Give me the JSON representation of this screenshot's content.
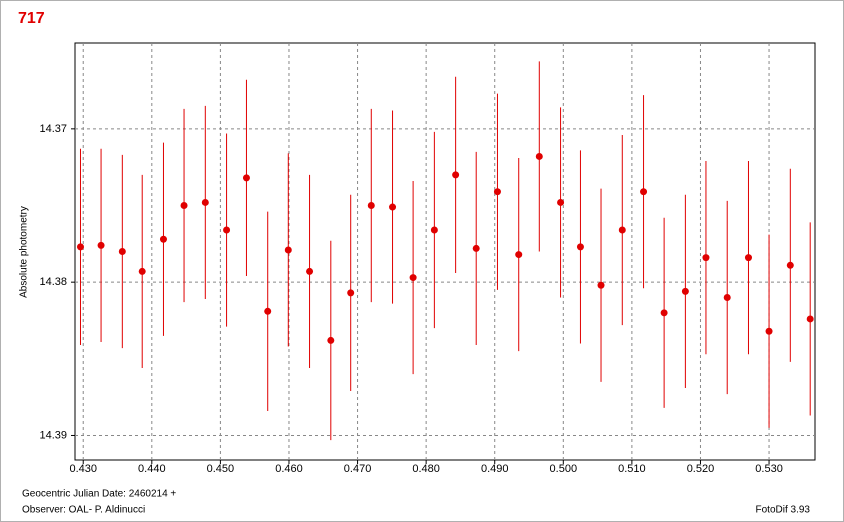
{
  "chart_data": {
    "type": "scatter",
    "title": "717",
    "ylabel": "Absolute photometry",
    "xlabel": "Geocentric Julian Date: 2460214 +",
    "observer": "Observer: OAL- P. Aldinucci",
    "software": "FotoDif 3.93",
    "color": "#e00000",
    "grid": true,
    "x": [
      0.4296,
      0.4326,
      0.4357,
      0.4386,
      0.4417,
      0.4447,
      0.4478,
      0.4509,
      0.4538,
      0.4569,
      0.4599,
      0.463,
      0.4661,
      0.469,
      0.472,
      0.4751,
      0.4781,
      0.4812,
      0.4843,
      0.4873,
      0.4904,
      0.4935,
      0.4965,
      0.4996,
      0.5025,
      0.5055,
      0.5086,
      0.5117,
      0.5147,
      0.5178,
      0.5208,
      0.5239,
      0.527,
      0.53,
      0.5331,
      0.536
    ],
    "values": [
      14.3777,
      14.3776,
      14.378,
      14.3793,
      14.3772,
      14.375,
      14.3748,
      14.3766,
      14.3732,
      14.3819,
      14.3779,
      14.3793,
      14.3838,
      14.3807,
      14.375,
      14.3751,
      14.3797,
      14.3766,
      14.373,
      14.3778,
      14.3741,
      14.3782,
      14.3718,
      14.3748,
      14.3777,
      14.3802,
      14.3766,
      14.3741,
      14.382,
      14.3806,
      14.3784,
      14.381,
      14.3784,
      14.3832,
      14.3789,
      14.3824
    ],
    "errors": [
      0.0064,
      0.0063,
      0.0063,
      0.0063,
      0.0063,
      0.0063,
      0.0063,
      0.0063,
      0.0064,
      0.0065,
      0.0063,
      0.0063,
      0.0065,
      0.0064,
      0.0063,
      0.0063,
      0.0063,
      0.0064,
      0.0064,
      0.0063,
      0.0064,
      0.0063,
      0.0062,
      0.0062,
      0.0063,
      0.0063,
      0.0062,
      0.0063,
      0.0062,
      0.0063,
      0.0063,
      0.0063,
      0.0063,
      0.0063,
      0.0063,
      0.0063
    ],
    "xlim": [
      0.4288,
      0.5367
    ],
    "ylim": [
      14.3916,
      14.3644
    ],
    "xticks": [
      {
        "value": 0.43,
        "label": "0.430"
      },
      {
        "value": 0.44,
        "label": "0.440"
      },
      {
        "value": 0.45,
        "label": "0.450"
      },
      {
        "value": 0.46,
        "label": "0.460"
      },
      {
        "value": 0.47,
        "label": "0.470"
      },
      {
        "value": 0.48,
        "label": "0.480"
      },
      {
        "value": 0.49,
        "label": "0.490"
      },
      {
        "value": 0.5,
        "label": "0.500"
      },
      {
        "value": 0.51,
        "label": "0.510"
      },
      {
        "value": 0.52,
        "label": "0.520"
      },
      {
        "value": 0.53,
        "label": "0.530"
      }
    ],
    "yticks": [
      14.37,
      14.38,
      14.39
    ]
  }
}
